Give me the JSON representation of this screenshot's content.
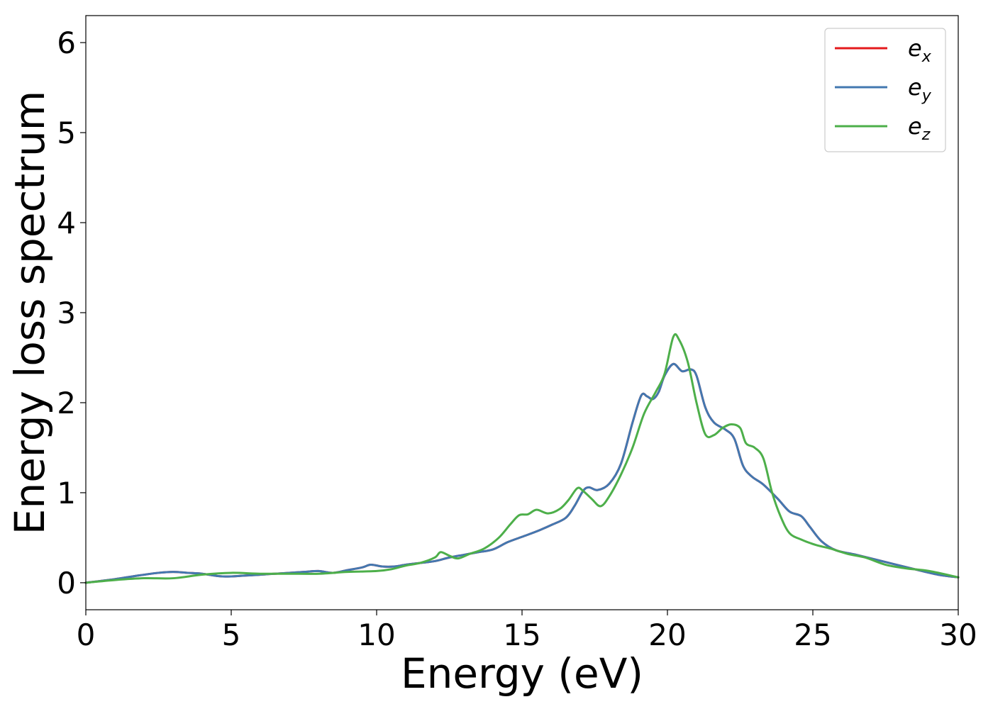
{
  "chart_data": {
    "type": "line",
    "title": "",
    "xlabel": "Energy (eV)",
    "ylabel": "Energy loss spectrum",
    "xlim": [
      0,
      30
    ],
    "ylim": [
      -0.3,
      6.3
    ],
    "xticks": [
      0,
      5,
      10,
      15,
      20,
      25,
      30
    ],
    "yticks": [
      0,
      1,
      2,
      3,
      4,
      5,
      6
    ],
    "grid": false,
    "legend_position": "top-right",
    "series": [
      {
        "name": "e_x",
        "label_base": "e",
        "label_sub": "x",
        "color": "#e41a1c",
        "x": [
          0,
          1,
          1.8,
          2.5,
          3,
          3.5,
          4,
          4.7,
          5.5,
          6.5,
          7.5,
          8,
          8.5,
          9,
          9.5,
          9.8,
          10.2,
          10.6,
          11,
          11.5,
          12,
          12.5,
          13,
          13.5,
          14,
          14.5,
          15,
          15.5,
          16,
          16.5,
          16.8,
          17.1,
          17.3,
          17.6,
          18,
          18.4,
          18.8,
          19.1,
          19.3,
          19.5,
          19.7,
          19.9,
          20.2,
          20.5,
          20.8,
          21,
          21.3,
          21.6,
          22,
          22.3,
          22.6,
          22.9,
          23.3,
          23.8,
          24.2,
          24.6,
          24.9,
          25.3,
          25.8,
          26.5,
          27.5,
          28.5,
          29.3,
          30
        ],
        "y": [
          0,
          0.04,
          0.08,
          0.11,
          0.12,
          0.11,
          0.1,
          0.07,
          0.08,
          0.1,
          0.12,
          0.13,
          0.11,
          0.14,
          0.17,
          0.2,
          0.18,
          0.18,
          0.2,
          0.22,
          0.24,
          0.28,
          0.31,
          0.34,
          0.37,
          0.45,
          0.51,
          0.57,
          0.64,
          0.72,
          0.85,
          1.02,
          1.06,
          1.03,
          1.1,
          1.32,
          1.78,
          2.08,
          2.07,
          2.04,
          2.12,
          2.3,
          2.43,
          2.35,
          2.37,
          2.3,
          1.95,
          1.78,
          1.7,
          1.6,
          1.3,
          1.18,
          1.09,
          0.93,
          0.79,
          0.74,
          0.62,
          0.46,
          0.36,
          0.31,
          0.23,
          0.15,
          0.09,
          0.06
        ]
      },
      {
        "name": "e_y",
        "label_base": "e",
        "label_sub": "y",
        "color": "#4378b0",
        "x": [
          0,
          1,
          1.8,
          2.5,
          3,
          3.5,
          4,
          4.7,
          5.5,
          6.5,
          7.5,
          8,
          8.5,
          9,
          9.5,
          9.8,
          10.2,
          10.6,
          11,
          11.5,
          12,
          12.5,
          13,
          13.5,
          14,
          14.5,
          15,
          15.5,
          16,
          16.5,
          16.8,
          17.1,
          17.3,
          17.6,
          18,
          18.4,
          18.8,
          19.1,
          19.3,
          19.5,
          19.7,
          19.9,
          20.2,
          20.5,
          20.8,
          21,
          21.3,
          21.6,
          22,
          22.3,
          22.6,
          22.9,
          23.3,
          23.8,
          24.2,
          24.6,
          24.9,
          25.3,
          25.8,
          26.5,
          27.5,
          28.5,
          29.3,
          30
        ],
        "y": [
          0,
          0.04,
          0.08,
          0.11,
          0.12,
          0.11,
          0.1,
          0.07,
          0.08,
          0.1,
          0.12,
          0.13,
          0.11,
          0.14,
          0.17,
          0.2,
          0.18,
          0.18,
          0.2,
          0.22,
          0.24,
          0.28,
          0.31,
          0.34,
          0.37,
          0.45,
          0.51,
          0.57,
          0.64,
          0.72,
          0.85,
          1.02,
          1.06,
          1.03,
          1.1,
          1.32,
          1.78,
          2.08,
          2.07,
          2.04,
          2.12,
          2.3,
          2.43,
          2.35,
          2.37,
          2.3,
          1.95,
          1.78,
          1.7,
          1.6,
          1.3,
          1.18,
          1.09,
          0.93,
          0.79,
          0.74,
          0.62,
          0.46,
          0.36,
          0.31,
          0.23,
          0.15,
          0.09,
          0.06
        ]
      },
      {
        "name": "e_z",
        "label_base": "e",
        "label_sub": "z",
        "color": "#4daf4a",
        "x": [
          0,
          1,
          2,
          3,
          4,
          5,
          6,
          7,
          8,
          9,
          10,
          10.5,
          11,
          11.5,
          12,
          12.2,
          12.5,
          12.8,
          13.2,
          13.7,
          14.2,
          14.6,
          14.9,
          15.2,
          15.5,
          15.9,
          16.3,
          16.6,
          16.9,
          17.1,
          17.4,
          17.7,
          18,
          18.4,
          18.8,
          19.2,
          19.6,
          19.9,
          20.2,
          20.4,
          20.7,
          21,
          21.3,
          21.6,
          21.9,
          22.2,
          22.5,
          22.7,
          23,
          23.3,
          23.6,
          23.9,
          24.2,
          24.6,
          25.1,
          25.6,
          26.2,
          26.8,
          27.5,
          28.2,
          29,
          30
        ],
        "y": [
          0,
          0.03,
          0.05,
          0.05,
          0.09,
          0.11,
          0.1,
          0.1,
          0.1,
          0.12,
          0.13,
          0.15,
          0.19,
          0.22,
          0.28,
          0.34,
          0.3,
          0.27,
          0.32,
          0.38,
          0.5,
          0.65,
          0.75,
          0.76,
          0.81,
          0.77,
          0.82,
          0.92,
          1.05,
          1.02,
          0.93,
          0.85,
          0.96,
          1.2,
          1.5,
          1.88,
          2.12,
          2.32,
          2.73,
          2.7,
          2.45,
          2.0,
          1.65,
          1.64,
          1.72,
          1.76,
          1.72,
          1.55,
          1.5,
          1.38,
          1.0,
          0.73,
          0.55,
          0.48,
          0.42,
          0.38,
          0.32,
          0.28,
          0.2,
          0.16,
          0.13,
          0.06
        ]
      }
    ]
  }
}
